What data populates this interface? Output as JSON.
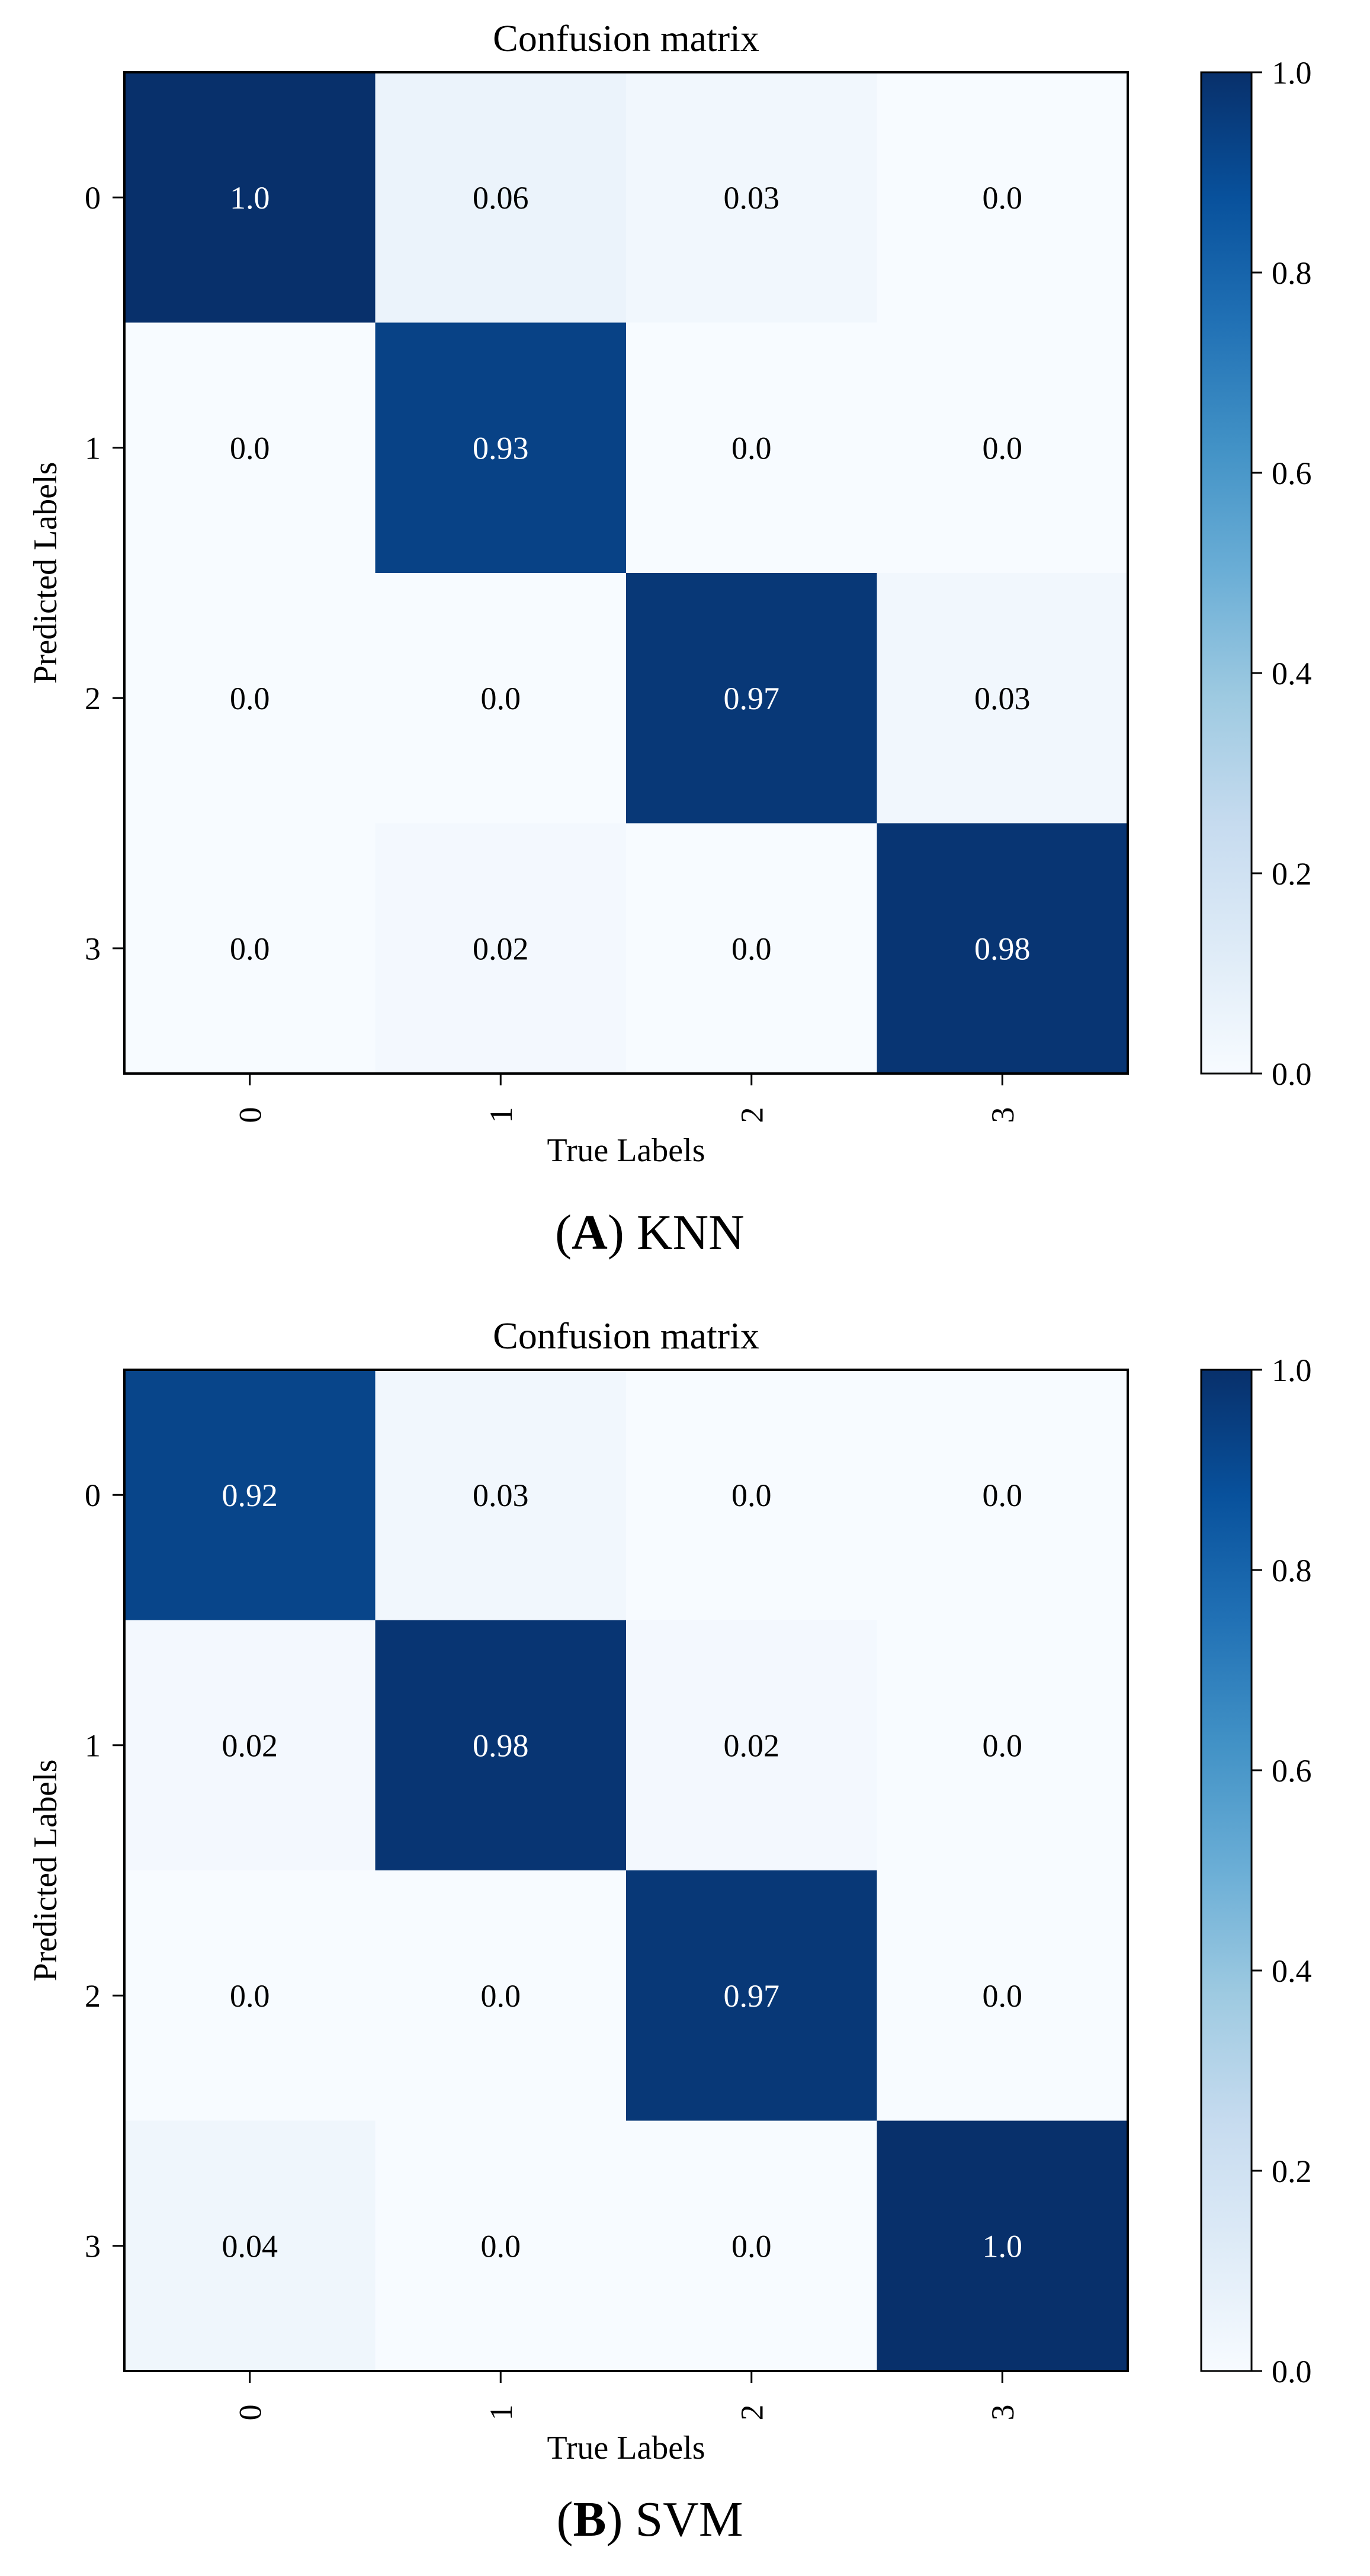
{
  "colors": {
    "cmap": [
      "#f7fbff",
      "#deebf7",
      "#c6dbef",
      "#9ecae1",
      "#6baed6",
      "#4292c6",
      "#2171b5",
      "#08519c",
      "#08306b"
    ],
    "text_light": "#ffffff",
    "text_dark": "#000000",
    "axis": "#000000"
  },
  "chart_data": [
    {
      "type": "heatmap",
      "title": "Confusion matrix",
      "xlabel": "True Labels",
      "ylabel": "Predicted Labels",
      "x_tick_labels": [
        "0",
        "1",
        "2",
        "3"
      ],
      "y_tick_labels": [
        "0",
        "1",
        "2",
        "3"
      ],
      "values": [
        [
          1.0,
          0.06,
          0.03,
          0.0
        ],
        [
          0.0,
          0.93,
          0.0,
          0.0
        ],
        [
          0.0,
          0.0,
          0.97,
          0.03
        ],
        [
          0.0,
          0.02,
          0.0,
          0.98
        ]
      ],
      "value_labels": [
        [
          "1.0",
          "0.06",
          "0.03",
          "0.0"
        ],
        [
          "0.0",
          "0.93",
          "0.0",
          "0.0"
        ],
        [
          "0.0",
          "0.0",
          "0.97",
          "0.03"
        ],
        [
          "0.0",
          "0.02",
          "0.0",
          "0.98"
        ]
      ],
      "colorbar": {
        "range": [
          0.0,
          1.0
        ],
        "ticks": [
          "0.0",
          "0.2",
          "0.4",
          "0.6",
          "0.8",
          "1.0"
        ]
      },
      "caption": {
        "letter": "A",
        "model": "KNN"
      }
    },
    {
      "type": "heatmap",
      "title": "Confusion matrix",
      "xlabel": "True Labels",
      "ylabel": "Predicted Labels",
      "x_tick_labels": [
        "0",
        "1",
        "2",
        "3"
      ],
      "y_tick_labels": [
        "0",
        "1",
        "2",
        "3"
      ],
      "values": [
        [
          0.92,
          0.03,
          0.0,
          0.0
        ],
        [
          0.02,
          0.98,
          0.02,
          0.0
        ],
        [
          0.0,
          0.0,
          0.97,
          0.0
        ],
        [
          0.04,
          0.0,
          0.0,
          1.0
        ]
      ],
      "value_labels": [
        [
          "0.92",
          "0.03",
          "0.0",
          "0.0"
        ],
        [
          "0.02",
          "0.98",
          "0.02",
          "0.0"
        ],
        [
          "0.0",
          "0.0",
          "0.97",
          "0.0"
        ],
        [
          "0.04",
          "0.0",
          "0.0",
          "1.0"
        ]
      ],
      "colorbar": {
        "range": [
          0.0,
          1.0
        ],
        "ticks": [
          "0.0",
          "0.2",
          "0.4",
          "0.6",
          "0.8",
          "1.0"
        ]
      },
      "caption": {
        "letter": "B",
        "model": "SVM"
      }
    }
  ]
}
